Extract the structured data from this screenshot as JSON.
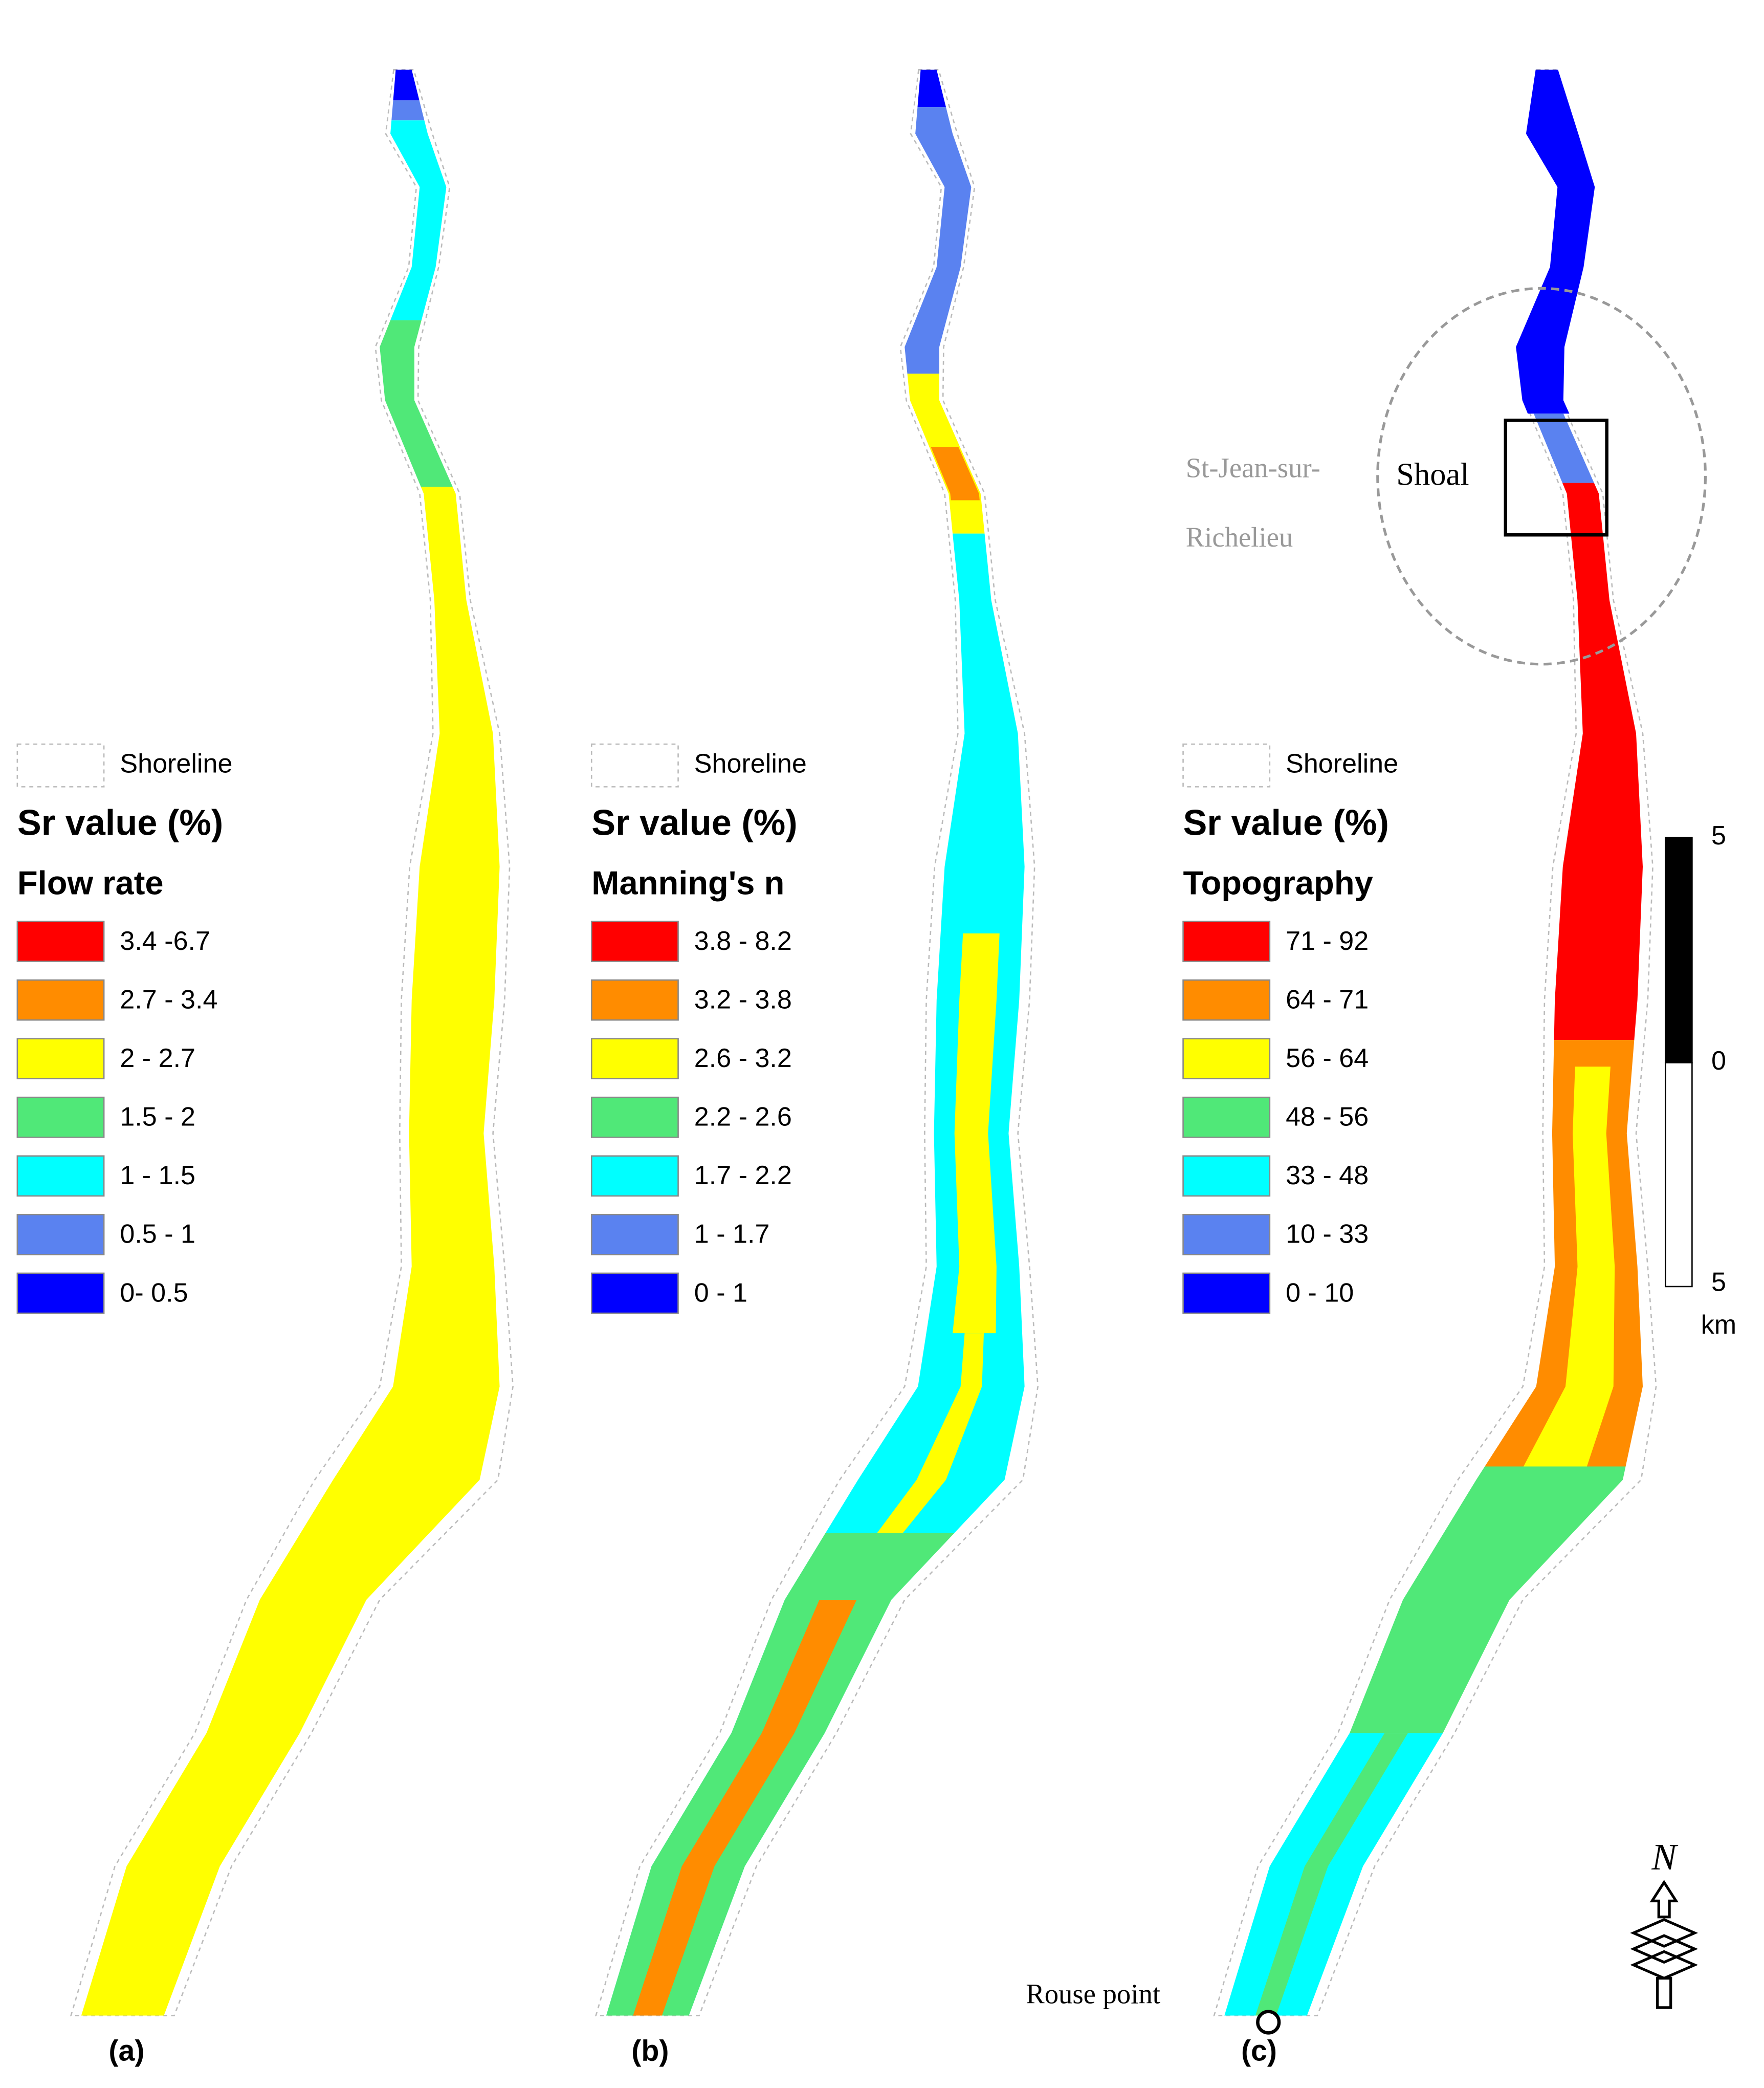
{
  "panels": [
    {
      "label": "(a)",
      "legend": {
        "shoreline": "Shoreline",
        "title": "Sr value (%)",
        "subtitle": "Flow rate",
        "classes": [
          {
            "label": "3.4 -6.7",
            "color": "#ff0000"
          },
          {
            "label": "2.7 - 3.4",
            "color": "#ff8c00"
          },
          {
            "label": "2 - 2.7",
            "color": "#ffff00"
          },
          {
            "label": "1.5 - 2",
            "color": "#50e878"
          },
          {
            "label": "1 - 1.5",
            "color": "#00ffff"
          },
          {
            "label": "0.5 - 1",
            "color": "#5a82f0"
          },
          {
            "label": "0- 0.5",
            "color": "#0000ff"
          }
        ]
      }
    },
    {
      "label": "(b)",
      "legend": {
        "shoreline": "Shoreline",
        "title": "Sr value (%)",
        "subtitle": "Manning's n",
        "classes": [
          {
            "label": "3.8 - 8.2",
            "color": "#ff0000"
          },
          {
            "label": "3.2 - 3.8",
            "color": "#ff8c00"
          },
          {
            "label": "2.6 - 3.2",
            "color": "#ffff00"
          },
          {
            "label": "2.2 - 2.6",
            "color": "#50e878"
          },
          {
            "label": "1.7 - 2.2",
            "color": "#00ffff"
          },
          {
            "label": "1 - 1.7",
            "color": "#5a82f0"
          },
          {
            "label": "0 - 1",
            "color": "#0000ff"
          }
        ]
      }
    },
    {
      "label": "(c)",
      "legend": {
        "shoreline": "Shoreline",
        "title": "Sr value (%)",
        "subtitle": "Topography",
        "classes": [
          {
            "label": "71 - 92",
            "color": "#ff0000"
          },
          {
            "label": "64 - 71",
            "color": "#ff8c00"
          },
          {
            "label": "56 - 64",
            "color": "#ffff00"
          },
          {
            "label": "48 - 56",
            "color": "#50e878"
          },
          {
            "label": "33 - 48",
            "color": "#00ffff"
          },
          {
            "label": "10 - 33",
            "color": "#5a82f0"
          },
          {
            "label": "0 - 10",
            "color": "#0000ff"
          }
        ]
      }
    }
  ],
  "annotations": {
    "town_line1": "St-Jean-sur-",
    "town_line2": "Richelieu",
    "shoal": "Shoal",
    "rouse_point": "Rouse point"
  },
  "scale_bar": {
    "ticks": [
      "5",
      "0",
      "5"
    ],
    "unit": "km"
  },
  "north": "N"
}
